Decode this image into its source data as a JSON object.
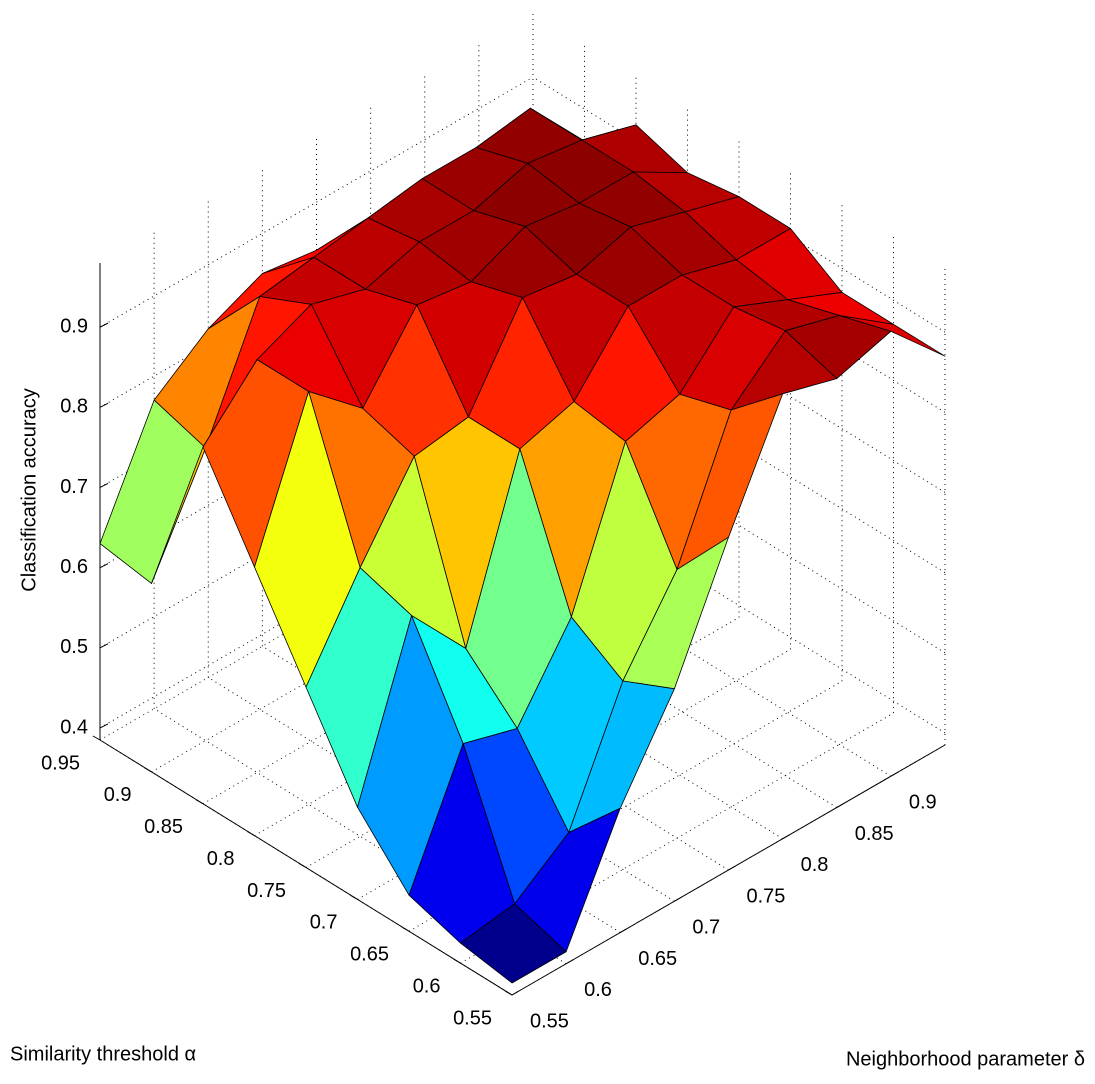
{
  "chart_data": {
    "type": "surface",
    "xlabel": "Similarity threshold α",
    "ylabel": "Neighborhood parameter δ",
    "zlabel": "Classification accuracy",
    "x": [
      0.55,
      0.6,
      0.65,
      0.7,
      0.75,
      0.8,
      0.85,
      0.9,
      0.95
    ],
    "y": [
      0.55,
      0.6,
      0.65,
      0.7,
      0.75,
      0.8,
      0.85,
      0.9,
      0.95
    ],
    "z": [
      [
        0.4,
        0.4,
        0.54,
        0.65,
        0.8,
        0.94,
        0.92,
        0.94,
        0.87
      ],
      [
        0.41,
        0.42,
        0.47,
        0.62,
        0.72,
        0.88,
        0.94,
        0.92,
        0.87
      ],
      [
        0.43,
        0.58,
        0.56,
        0.66,
        0.84,
        0.86,
        0.93,
        0.9,
        0.87
      ],
      [
        0.5,
        0.7,
        0.62,
        0.83,
        0.85,
        0.93,
        0.93,
        0.91,
        0.91
      ],
      [
        0.61,
        0.72,
        0.82,
        0.83,
        0.94,
        0.93,
        0.95,
        0.93,
        0.91
      ],
      [
        0.72,
        0.9,
        0.84,
        0.93,
        0.92,
        0.95,
        0.94,
        0.94,
        0.9
      ],
      [
        0.83,
        0.9,
        0.93,
        0.91,
        0.93,
        0.93,
        0.95,
        0.94,
        0.92
      ],
      [
        0.62,
        0.75,
        0.9,
        0.91,
        0.92,
        0.93,
        0.93,
        0.94,
        0.86
      ],
      [
        0.63,
        0.77,
        0.82,
        0.85,
        0.84,
        0.82,
        0.8,
        0.8,
        0.81
      ]
    ],
    "xlim": [
      0.55,
      0.95
    ],
    "xticks": [
      0.55,
      0.6,
      0.65,
      0.7,
      0.75,
      0.8,
      0.85,
      0.9,
      0.95
    ],
    "ylim": [
      0.55,
      0.95
    ],
    "yticks": [
      0.55,
      0.6,
      0.65,
      0.7,
      0.75,
      0.8,
      0.85,
      0.9
    ],
    "zlim": [
      0.385,
      0.98
    ],
    "zticks": [
      0.4,
      0.5,
      0.6,
      0.7,
      0.8,
      0.9
    ],
    "grid": true,
    "colormap": "jet"
  }
}
